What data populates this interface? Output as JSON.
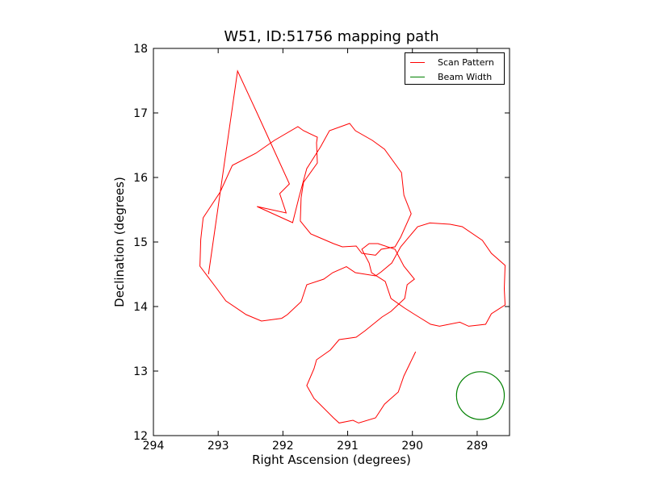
{
  "chart_data": {
    "type": "line",
    "title": "W51, ID:51756 mapping path",
    "xlabel": "Right Ascension (degrees)",
    "ylabel": "Declination (degrees)",
    "xlim": [
      294,
      288.5
    ],
    "ylim": [
      12,
      18
    ],
    "x_ticks": [
      "294",
      "293",
      "292",
      "291",
      "290",
      "289"
    ],
    "y_ticks": [
      "12",
      "13",
      "14",
      "15",
      "16",
      "17",
      "18"
    ],
    "legend_position": "top-right",
    "grid": false,
    "series": [
      {
        "name": "Scan Pattern",
        "color": "#ff0000",
        "x": [
          293.15,
          292.7,
          292.4,
          291.9,
          292.05,
          291.95,
          292.4,
          291.85,
          291.75,
          291.6,
          291.45,
          291.25,
          291.0,
          290.85,
          290.65,
          290.4,
          290.2,
          290.1,
          290.05,
          290.15,
          290.3,
          290.45,
          290.6,
          290.75,
          290.9,
          291.05,
          291.25,
          291.45,
          291.6,
          291.7,
          291.75,
          291.65,
          291.5,
          291.45,
          291.5,
          291.65,
          291.8,
          292.1,
          292.45,
          292.75,
          293.0,
          293.2,
          293.3,
          293.25,
          293.05,
          292.85,
          292.6,
          292.3,
          292.05,
          291.9,
          291.75,
          291.6,
          291.4,
          291.2,
          291.05,
          290.85,
          290.6,
          290.45,
          290.35,
          290.15,
          289.95,
          289.7,
          289.45,
          289.2,
          288.95,
          288.75,
          288.6,
          288.55,
          288.6,
          288.75,
          288.9,
          289.1,
          289.3,
          289.55,
          289.75,
          289.95,
          290.15,
          290.3,
          290.45,
          290.6,
          290.7,
          290.75,
          290.7,
          290.5,
          290.3,
          290.1,
          290.0,
          290.05,
          290.15,
          290.3,
          290.5,
          290.7,
          290.9,
          291.1,
          291.3,
          291.45,
          291.55,
          291.6,
          291.55,
          291.4,
          291.25,
          291.1,
          290.95,
          290.8,
          290.6,
          290.4,
          290.25,
          290.1,
          289.95
        ],
        "y": [
          14.5,
          17.65,
          17.0,
          15.9,
          15.75,
          15.45,
          15.55,
          15.3,
          15.7,
          16.1,
          16.5,
          16.75,
          16.8,
          16.75,
          16.6,
          16.4,
          16.1,
          15.75,
          15.4,
          15.1,
          14.95,
          14.85,
          14.82,
          14.85,
          14.9,
          14.95,
          15.0,
          15.05,
          15.15,
          15.35,
          15.65,
          15.95,
          16.25,
          16.5,
          16.65,
          16.75,
          16.75,
          16.6,
          16.4,
          16.15,
          15.8,
          15.4,
          15.0,
          14.65,
          14.3,
          14.05,
          13.9,
          13.8,
          13.78,
          13.9,
          14.1,
          14.3,
          14.45,
          14.55,
          14.58,
          14.55,
          14.5,
          14.5,
          14.7,
          14.95,
          15.2,
          15.32,
          15.3,
          15.2,
          15.05,
          14.85,
          14.6,
          14.3,
          14.05,
          13.85,
          13.75,
          13.72,
          13.72,
          13.72,
          13.75,
          13.85,
          14.0,
          14.15,
          14.35,
          14.55,
          14.7,
          14.85,
          15.0,
          15.0,
          14.85,
          14.65,
          14.45,
          14.3,
          14.15,
          13.95,
          13.8,
          13.65,
          13.55,
          13.45,
          13.35,
          13.2,
          13.0,
          12.8,
          12.6,
          12.45,
          12.3,
          12.22,
          12.2,
          12.22,
          12.3,
          12.45,
          12.7,
          12.95,
          13.3
        ]
      },
      {
        "name": "Beam Width",
        "color": "#008000",
        "shape": "circle",
        "center": [
          288.95,
          12.62
        ],
        "radius_dec": 0.37
      }
    ]
  }
}
